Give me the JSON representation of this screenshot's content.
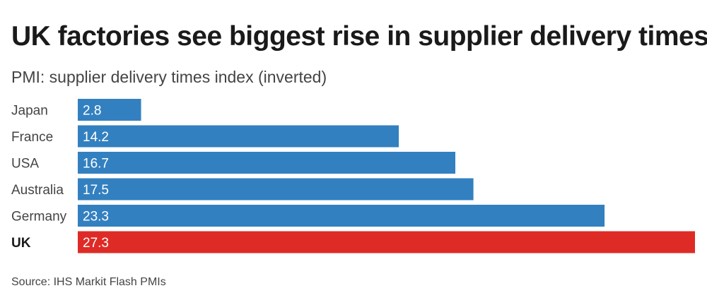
{
  "title": "UK factories see biggest rise in supplier delivery times",
  "subtitle": "PMI: supplier delivery times index (inverted)",
  "source": "Source: IHS Markit Flash PMIs",
  "colors": {
    "bar": "#3380c0",
    "highlight": "#de2b26"
  },
  "chart_data": {
    "type": "bar",
    "orientation": "horizontal",
    "categories": [
      "Japan",
      "France",
      "USA",
      "Australia",
      "Germany",
      "UK"
    ],
    "values": [
      2.8,
      14.2,
      16.7,
      17.5,
      23.3,
      27.3
    ],
    "data_labels": [
      "2.8",
      "14.2",
      "16.7",
      "17.5",
      "23.3",
      "27.3"
    ],
    "highlight_category": "UK",
    "xlim": [
      0,
      27.3
    ],
    "grid": false,
    "legend": "none"
  }
}
